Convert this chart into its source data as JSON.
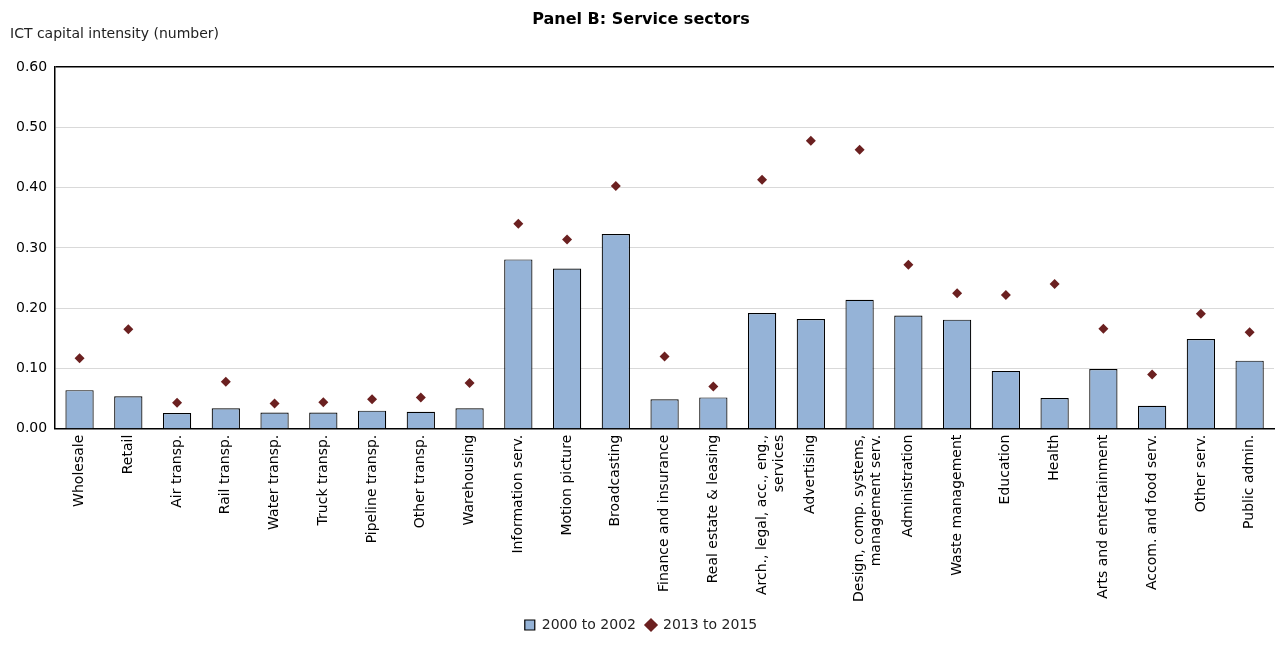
{
  "chart_data": {
    "type": "bar",
    "title": "Panel B: Service sectors",
    "ylabel": "ICT capital intensity (number)",
    "categories": [
      "Wholesale",
      "Retail",
      "Air transp.",
      "Rail transp.",
      "Water transp.",
      "Truck transp.",
      "Pipeline transp.",
      "Other transp.",
      "Warehousing",
      "Information serv.",
      "Motion picture",
      "Broadcasting",
      "Finance and insurance",
      "Real estate & leasing",
      "Arch., legal, acc., eng., services",
      "Advertising",
      "Design, comp. systems, management serv.",
      "Administration",
      "Waste management",
      "Education",
      "Health",
      "Arts and entertainment",
      "Accom. and food serv.",
      "Other serv.",
      "Public admin."
    ],
    "series": [
      {
        "name": "2000 to 2002",
        "color": "#95b3d7",
        "values": [
          0.064,
          0.054,
          0.026,
          0.034,
          0.027,
          0.027,
          0.03,
          0.028,
          0.034,
          0.281,
          0.266,
          0.323,
          0.049,
          0.052,
          0.192,
          0.182,
          0.214,
          0.188,
          0.181,
          0.096,
          0.051,
          0.099,
          0.038,
          0.149,
          0.113
        ]
      },
      {
        "name": "2013 to 2015",
        "type": "scatter",
        "color": "#6b2020",
        "values": [
          0.117,
          0.165,
          0.043,
          0.078,
          0.042,
          0.044,
          0.049,
          0.052,
          0.076,
          0.34,
          0.314,
          0.403,
          0.12,
          0.07,
          0.413,
          0.478,
          0.463,
          0.272,
          0.225,
          0.222,
          0.24,
          0.166,
          0.09,
          0.191,
          0.16
        ]
      }
    ],
    "ylim": [
      0,
      0.6
    ],
    "yticks": [
      {
        "value": 0,
        "label": "0.00"
      },
      {
        "value": 0.1,
        "label": "0.10"
      },
      {
        "value": 0.2,
        "label": "0.20"
      },
      {
        "value": 0.3,
        "label": "0.30"
      },
      {
        "value": 0.4,
        "label": "0.40"
      },
      {
        "value": 0.5,
        "label": "0.50"
      },
      {
        "value": 0.6,
        "label": "0.60"
      }
    ],
    "grid": "y",
    "legend": "bottom",
    "marker": "diamond"
  }
}
